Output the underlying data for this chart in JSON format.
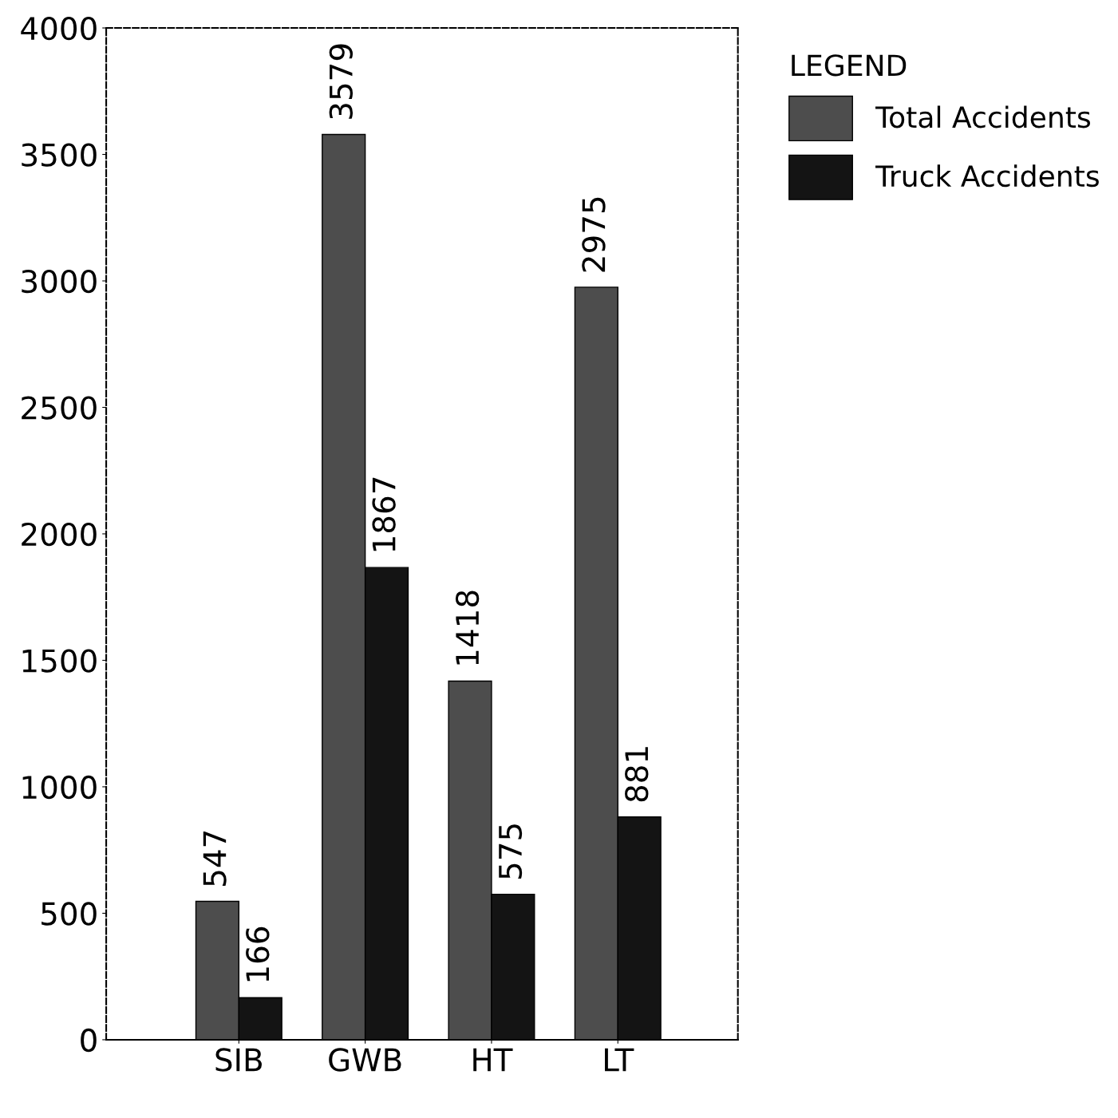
{
  "chart_data": {
    "type": "bar",
    "categories": [
      "SIB",
      "GWB",
      "HT",
      "LT"
    ],
    "series": [
      {
        "name": "Total Accidents",
        "color": "#4d4d4d",
        "values": [
          547,
          3579,
          1418,
          2975
        ]
      },
      {
        "name": "Truck Accidents",
        "color": "#141414",
        "values": [
          166,
          1867,
          575,
          881
        ]
      }
    ],
    "ylim": [
      0,
      4000
    ],
    "yticks": [
      0,
      500,
      1000,
      1500,
      2000,
      2500,
      3000,
      3500,
      4000
    ],
    "data_labels": true,
    "legend": "top right",
    "legend_title": "LEGEND",
    "grid": false
  }
}
